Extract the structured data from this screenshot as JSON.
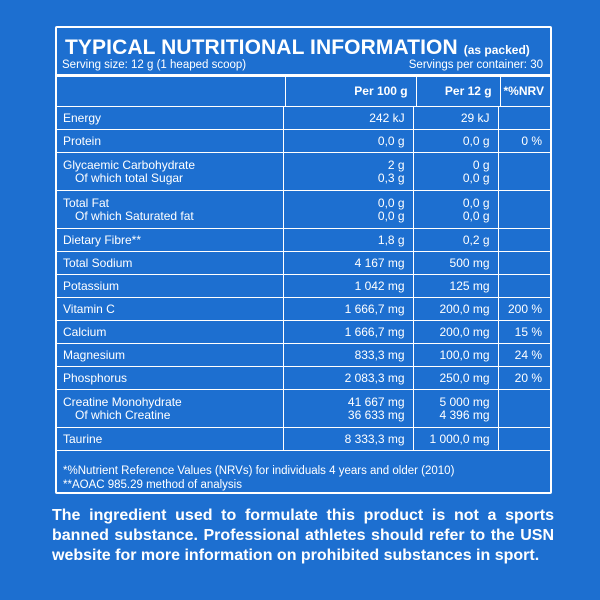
{
  "title": "TYPICAL NUTRITIONAL INFORMATION",
  "title_suffix": "(as packed)",
  "serving_size": "Serving size: 12 g (1 heaped scoop)",
  "servings_per_container": "Servings per container: 30",
  "columns": {
    "per100": "Per 100 g",
    "per12": "Per 12 g",
    "nrv": "*%NRV"
  },
  "rows": [
    {
      "label": "Energy",
      "per100": "242 kJ",
      "per12": "29 kJ",
      "nrv": ""
    },
    {
      "label": "Protein",
      "per100": "0,0 g",
      "per12": "0,0 g",
      "nrv": "0 %"
    },
    {
      "label": "Glycaemic Carbohydrate",
      "sub": "Of which total Sugar",
      "per100": "2 g",
      "per100_sub": "0,3 g",
      "per12": "0 g",
      "per12_sub": "0,0 g",
      "nrv": ""
    },
    {
      "label": "Total Fat",
      "sub": "Of which Saturated fat",
      "per100": "0,0 g",
      "per100_sub": "0,0 g",
      "per12": "0,0 g",
      "per12_sub": "0,0 g",
      "nrv": ""
    },
    {
      "label": "Dietary Fibre**",
      "per100": "1,8 g",
      "per12": "0,2 g",
      "nrv": ""
    },
    {
      "label": "Total Sodium",
      "per100": "4 167 mg",
      "per12": "500 mg",
      "nrv": ""
    },
    {
      "label": "Potassium",
      "per100": "1 042 mg",
      "per12": "125 mg",
      "nrv": ""
    },
    {
      "label": "Vitamin C",
      "per100": "1 666,7 mg",
      "per12": "200,0 mg",
      "nrv": "200 %"
    },
    {
      "label": "Calcium",
      "per100": "1 666,7 mg",
      "per12": "200,0 mg",
      "nrv": "15 %"
    },
    {
      "label": "Magnesium",
      "per100": "833,3 mg",
      "per12": "100,0 mg",
      "nrv": "24 %"
    },
    {
      "label": "Phosphorus",
      "per100": "2 083,3 mg",
      "per12": "250,0 mg",
      "nrv": "20 %"
    },
    {
      "label": "Creatine Monohydrate",
      "sub": "Of which Creatine",
      "per100": "41 667 mg",
      "per100_sub": "36 633 mg",
      "per12": "5 000 mg",
      "per12_sub": "4 396 mg",
      "nrv": ""
    },
    {
      "label": "Taurine",
      "per100": "8 333,3 mg",
      "per12": "1 000,0 mg",
      "nrv": ""
    }
  ],
  "footnote_1": "*%Nutrient Reference Values (NRVs) for individuals 4 years and older (2010)",
  "footnote_2": "**AOAC 985.29 method of analysis",
  "disclaimer": "The ingredient used to formulate this product is not a sports banned substance. Professional athletes should refer to the USN website for more information on prohibited substances in sport."
}
